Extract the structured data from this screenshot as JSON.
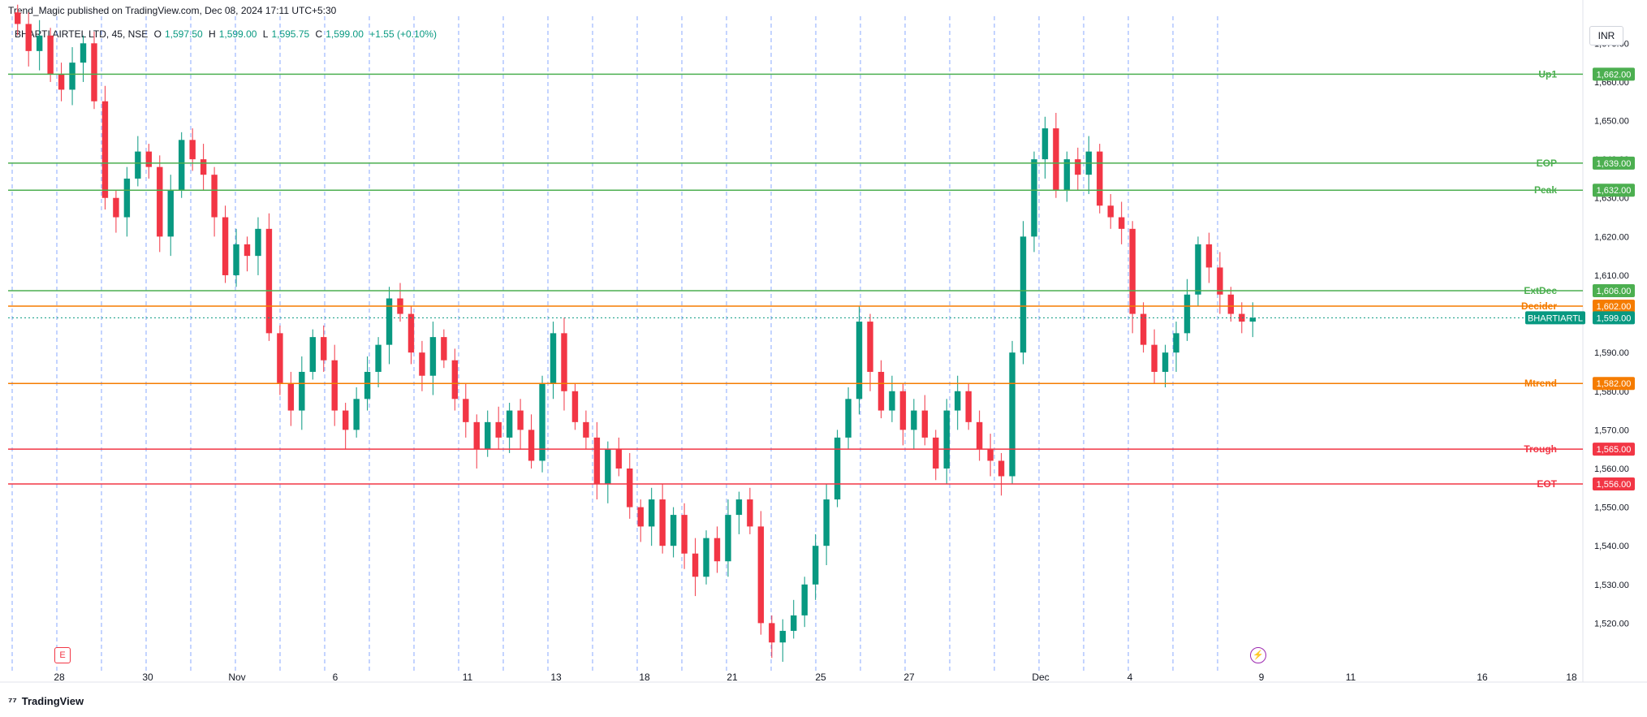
{
  "header": {
    "publish_text": "Trend_Magic published on TradingView.com, Dec 08, 2024 17:11 UTC+5:30",
    "symbol": "BHARTI AIRTEL LTD, 45, NSE",
    "open_label": "O",
    "open": "1,597.50",
    "high_label": "H",
    "high": "1,599.00",
    "low_label": "L",
    "low": "1,595.75",
    "close_label": "C",
    "close": "1,599.00",
    "change": "+1.55 (+0.10%)"
  },
  "currency": "INR",
  "footer": {
    "brand": "TradingView"
  },
  "events": {
    "earnings_badge": "E",
    "dividend_icon": "bolt-icon"
  },
  "colors": {
    "up": "#089981",
    "down": "#f23645",
    "green_line": "#4caf50",
    "orange_line": "#f57c00",
    "red_line": "#f23645",
    "grid_dash": "#2962ff"
  },
  "chart_data": {
    "type": "candlestick",
    "ylim": [
      1510,
      1677
    ],
    "yticks": [
      1520,
      1530,
      1540,
      1550,
      1560,
      1570,
      1580,
      1590,
      1600,
      1610,
      1620,
      1630,
      1640,
      1650,
      1660,
      1670
    ],
    "y_tick_labels": [
      "1,520.00",
      "1,530.00",
      "1,540.00",
      "1,550.00",
      "1,560.00",
      "1,570.00",
      "1,580.00",
      "1,590.00",
      "1,600.00",
      "1,610.00",
      "1,620.00",
      "1,630.00",
      "1,640.00",
      "1,650.00",
      "1,660.00",
      "1,670.00"
    ],
    "x_tick_labels": [
      "28",
      "30",
      "Nov",
      "6",
      "11",
      "13",
      "18",
      "21",
      "25",
      "27",
      "Dec",
      "4",
      "9",
      "11",
      "16",
      "18"
    ],
    "levels": [
      {
        "name": "Up1",
        "value": 1662.0,
        "label": "1,662.00",
        "color": "#4caf50"
      },
      {
        "name": "EOP",
        "value": 1639.0,
        "label": "1,639.00",
        "color": "#4caf50"
      },
      {
        "name": "Peak",
        "value": 1632.0,
        "label": "1,632.00",
        "color": "#4caf50"
      },
      {
        "name": "ExtDec",
        "value": 1606.0,
        "label": "1,606.00",
        "color": "#4caf50"
      },
      {
        "name": "Decider",
        "value": 1602.0,
        "label": "1,602.00",
        "color": "#f57c00"
      },
      {
        "name": "Mtrend",
        "value": 1582.0,
        "label": "1,582.00",
        "color": "#f57c00"
      },
      {
        "name": "Trough",
        "value": 1565.0,
        "label": "1,565.00",
        "color": "#f23645"
      },
      {
        "name": "EOT",
        "value": 1556.0,
        "label": "1,556.00",
        "color": "#f23645"
      }
    ],
    "last_price": {
      "symbol": "BHARTIARTL",
      "value": 1599.0,
      "label": "1,599.00"
    },
    "close_path": [
      1675,
      1668,
      1672,
      1662,
      1658,
      1665,
      1670,
      1655,
      1630,
      1625,
      1635,
      1642,
      1638,
      1620,
      1632,
      1645,
      1640,
      1636,
      1625,
      1610,
      1618,
      1615,
      1622,
      1595,
      1582,
      1575,
      1585,
      1594,
      1588,
      1575,
      1570,
      1578,
      1585,
      1592,
      1604,
      1600,
      1590,
      1584,
      1594,
      1588,
      1578,
      1572,
      1565,
      1572,
      1568,
      1575,
      1570,
      1562,
      1582,
      1595,
      1580,
      1572,
      1568,
      1556,
      1565,
      1560,
      1550,
      1545,
      1552,
      1540,
      1548,
      1538,
      1532,
      1542,
      1536,
      1548,
      1552,
      1545,
      1520,
      1515,
      1518,
      1522,
      1530,
      1540,
      1552,
      1568,
      1578,
      1598,
      1585,
      1575,
      1580,
      1570,
      1575,
      1568,
      1560,
      1575,
      1580,
      1572,
      1565,
      1562,
      1558,
      1590,
      1620,
      1640,
      1648,
      1632,
      1640,
      1636,
      1642,
      1628,
      1625,
      1622,
      1600,
      1592,
      1585,
      1590,
      1595,
      1605,
      1618,
      1612,
      1605,
      1600,
      1598,
      1599
    ]
  }
}
